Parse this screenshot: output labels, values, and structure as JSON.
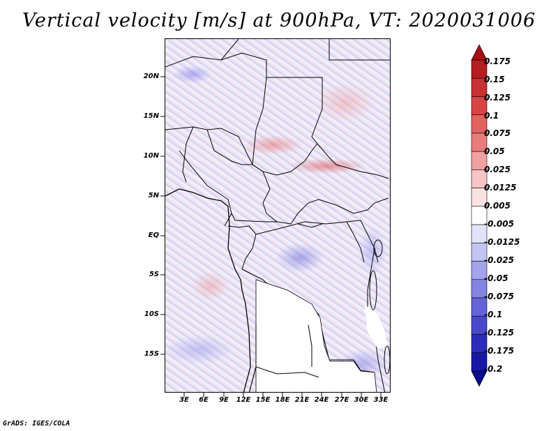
{
  "title": "Vertical velocity [m/s] at 900hPa, VT: 2020031006",
  "credit": "GrADS: IGES/COLA",
  "map": {
    "variable": "Vertical velocity",
    "units": "m/s",
    "level": "900hPa",
    "valid_time": "2020031006",
    "lat_labels": [
      "20N",
      "15N",
      "10N",
      "5N",
      "EQ",
      "5S",
      "10S",
      "15S"
    ],
    "lon_labels": [
      "3E",
      "6E",
      "9E",
      "12E",
      "15E",
      "18E",
      "21E",
      "24E",
      "27E",
      "30E",
      "33E"
    ]
  },
  "colorbar": {
    "labels": [
      "0.175",
      "0.15",
      "0.125",
      "0.1",
      "0.075",
      "0.05",
      "0.025",
      "0.0125",
      "0.005",
      "-0.005",
      "-0.0125",
      "-0.025",
      "-0.05",
      "-0.075",
      "-0.1",
      "-0.125",
      "-0.175",
      "-0.2"
    ],
    "colors": [
      "#a50f15",
      "#b51d1f",
      "#c83232",
      "#d84444",
      "#e26262",
      "#e87c7c",
      "#f0a0a0",
      "#f6c4c4",
      "#fbe2e2",
      "#ffffff",
      "#e2e2fa",
      "#c4c4f2",
      "#a4a4ec",
      "#8484e2",
      "#6464d8",
      "#4848cc",
      "#2c2cbc",
      "#1818a8",
      "#0a0a8a"
    ]
  }
}
